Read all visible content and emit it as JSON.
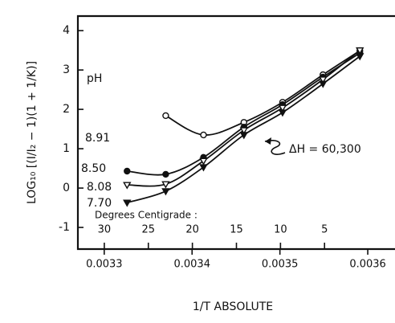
{
  "chart_data": {
    "type": "line",
    "y_label": "LOG₁₀ [(I/I₂ − 1)(1 + 1/K)]",
    "x_label": "1/T  ABSOLUTE",
    "x2_label": "Degrees Centigrade :",
    "legend_title": "pH",
    "annotation": "ΔH = 60,300",
    "xlim": [
      0.00327,
      0.003631
    ],
    "xticks": [
      0.0033,
      0.0034,
      0.0035,
      0.0036
    ],
    "x2lim": [
      33,
      -3
    ],
    "x2ticks": [
      30,
      25,
      20,
      15,
      10,
      5
    ],
    "ylim": [
      -1.55,
      4.37
    ],
    "yticks": [
      -1,
      0,
      1,
      2,
      3,
      4
    ],
    "series": [
      {
        "name": "8.91",
        "color": "#111111",
        "marker": "circle",
        "filled": false,
        "x": [
          0.00337,
          0.003413,
          0.003459,
          0.003503,
          0.003549,
          0.003591
        ],
        "values": [
          1.84,
          1.35,
          1.67,
          2.18,
          2.88,
          3.49
        ]
      },
      {
        "name": "8.50",
        "color": "#111111",
        "marker": "circle",
        "filled": true,
        "x": [
          0.003326,
          0.00337,
          0.003413,
          0.003459,
          0.003503,
          0.003549,
          0.003591
        ],
        "values": [
          0.43,
          0.35,
          0.78,
          1.55,
          2.12,
          2.82,
          3.43
        ]
      },
      {
        "name": "8.08",
        "color": "#111111",
        "marker": "triangle",
        "filled": false,
        "x": [
          0.003326,
          0.00337,
          0.003413,
          0.003459,
          0.003503,
          0.003549,
          0.003591
        ],
        "values": [
          0.08,
          0.1,
          0.69,
          1.47,
          2.04,
          2.76,
          3.5
        ]
      },
      {
        "name": "7.70",
        "color": "#111111",
        "marker": "triangle",
        "filled": true,
        "x": [
          0.003326,
          0.00337,
          0.003413,
          0.003459,
          0.003503,
          0.003549,
          0.003591
        ],
        "values": [
          -0.37,
          -0.08,
          0.53,
          1.35,
          1.92,
          2.65,
          3.35
        ]
      }
    ]
  }
}
